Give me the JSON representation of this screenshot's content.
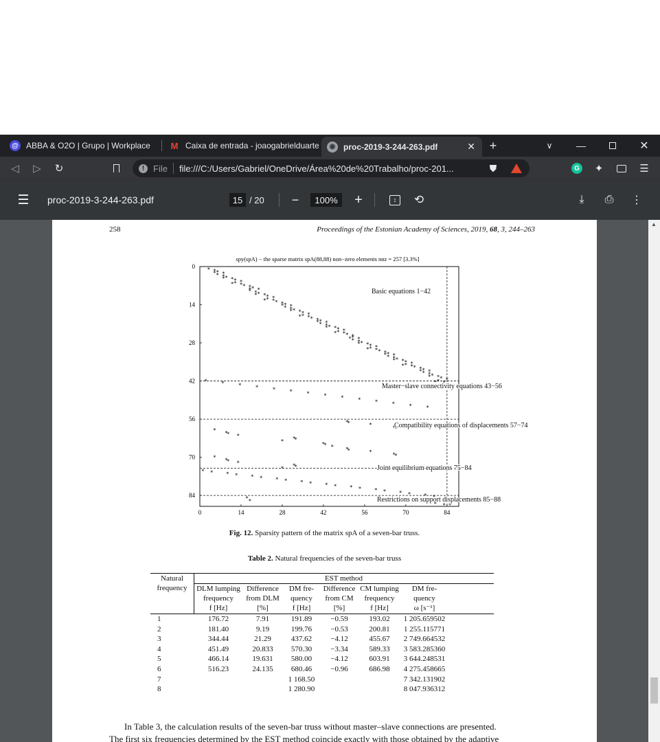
{
  "browser": {
    "tabs": [
      {
        "label": "ABBA & O2O | Grupo | Workplace",
        "icon": "workplace-icon"
      },
      {
        "label": "Caixa de entrada - joaogabrielduarte",
        "icon": "gmail-icon"
      },
      {
        "label": "proc-2019-3-244-263.pdf",
        "icon": "globe-icon",
        "active": true
      }
    ],
    "address": {
      "scheme_label": "File",
      "url": "file:///C:/Users/Gabriel/OneDrive/Área%20de%20Trabalho/proc-201..."
    }
  },
  "pdf_toolbar": {
    "filename": "proc-2019-3-244-263.pdf",
    "current_page": "15",
    "total_pages": "/ 20",
    "zoom": "100%"
  },
  "page": {
    "page_number": "258",
    "running_head_pre": "Proceedings of the Estonian Academy of Sciences, 2019, ",
    "running_head_vol": "68",
    "running_head_post": ", 3, 244–263",
    "figure_caption_bold": "Fig. 12.",
    "figure_caption_text": " Sparsity pattern of the matrix spA of a seven-bar truss.",
    "table_caption_bold": "Table 2.",
    "table_caption_text": " Natural frequencies of the seven-bar truss",
    "body_text_1": "In Table 3, the calculation results of the seven-bar truss without master–slave connections are presented.",
    "body_text_2": "The first six frequencies determined by the EST method coincide exactly with those obtained by the adaptive"
  },
  "chart_data": {
    "type": "scatter",
    "title": "spy(spA) − the sparse matrix spA(88,88) non−zero elements nnz = 257 [3.3%]",
    "x_ticks": [
      "0",
      "14",
      "28",
      "42",
      "56",
      "70",
      "84"
    ],
    "y_ticks": [
      "0",
      "14",
      "28",
      "42",
      "56",
      "70",
      "84"
    ],
    "xlim": [
      0,
      88
    ],
    "ylim": [
      0,
      88
    ],
    "y_inverted": true,
    "annotations": [
      {
        "text": "Basic equations 1−42"
      },
      {
        "text": "Master−slave connectivity equations 43−56"
      },
      {
        "text": "Compatibility equations of displacements 57−74"
      },
      {
        "text": "Joint equilibrium equations 75−84"
      },
      {
        "text": "Restrictions on support displacements 85−88"
      }
    ],
    "row_separators": [
      42,
      56,
      74,
      84
    ],
    "column_separator": 84
  },
  "table2": {
    "group_header": "EST method",
    "col_natural": [
      "Natural",
      "frequency"
    ],
    "columns": [
      [
        "DLM lumping",
        "frequency",
        "f [Hz]"
      ],
      [
        "Difference",
        "from DLM",
        "[%]"
      ],
      [
        "DM fre-",
        "quency",
        "f [Hz]"
      ],
      [
        "Difference",
        "from CM",
        "[%]"
      ],
      [
        "CM lumping",
        "frequency",
        "f [Hz]"
      ],
      [
        "DM fre-",
        "quency",
        "ω [s⁻¹]"
      ]
    ],
    "rows": [
      [
        "1",
        "176.72",
        "7.91",
        "191.89",
        "−0.59",
        "193.02",
        "1 205.659502"
      ],
      [
        "2",
        "181.40",
        "9.19",
        "199.76",
        "−0.53",
        "200.81",
        "1 255.115771"
      ],
      [
        "3",
        "344.44",
        "21.29",
        "437.62",
        "−4.12",
        "455.67",
        "2 749.664532"
      ],
      [
        "4",
        "451.49",
        "20.833",
        "570.30",
        "−3.34",
        "589.33",
        "3 583.285360"
      ],
      [
        "5",
        "466.14",
        "19.631",
        "580.00",
        "−4.12",
        "603.91",
        "3 644.248531"
      ],
      [
        "6",
        "516.23",
        "24.135",
        "680.46",
        "−0.96",
        "686.98",
        "4 275.458665"
      ],
      [
        "7",
        "",
        "",
        "1 168.50",
        "",
        "",
        "7 342.131902"
      ],
      [
        "8",
        "",
        "",
        "1 280.90",
        "",
        "",
        "8 047.936312"
      ]
    ]
  }
}
